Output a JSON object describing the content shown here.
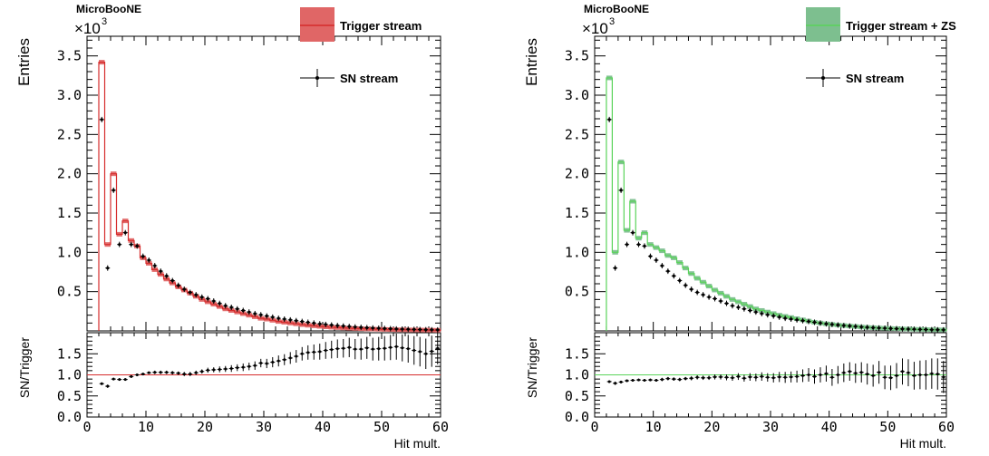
{
  "chart_data": [
    {
      "type": "histogram",
      "experiment_label": "MicroBooNE",
      "multiplier_label": "×10",
      "multiplier_exp": "3",
      "ylabel": "Entries",
      "xlabel": "Hit mult.",
      "ratio_ylabel": "SN/Trigger",
      "xlim": [
        0,
        60
      ],
      "ylim": [
        0,
        3.75
      ],
      "ratio_ylim": [
        0,
        2
      ],
      "x_ticks": [
        "0",
        "10",
        "20",
        "30",
        "40",
        "50",
        "60"
      ],
      "y_ticks": [
        "0.5",
        "1.0",
        "1.5",
        "2.0",
        "2.5",
        "3.0",
        "3.5"
      ],
      "ratio_ticks": [
        "0.0",
        "0.5",
        "1.0",
        "1.5"
      ],
      "legend": [
        {
          "label": "Trigger stream",
          "style": "band",
          "color": "#e06666"
        },
        {
          "label": "SN stream",
          "style": "marker",
          "color": "#000000"
        }
      ],
      "bins": {
        "start": 2,
        "width": 1,
        "count": 58
      },
      "series": [
        {
          "name": "Trigger stream",
          "color": "#d62c2c",
          "fill": "#e06666",
          "values": [
            3.42,
            1.1,
            2.0,
            1.23,
            1.4,
            1.15,
            1.08,
            0.93,
            0.86,
            0.78,
            0.72,
            0.66,
            0.61,
            0.56,
            0.52,
            0.48,
            0.44,
            0.4,
            0.37,
            0.34,
            0.31,
            0.28,
            0.26,
            0.24,
            0.22,
            0.2,
            0.18,
            0.16,
            0.15,
            0.135,
            0.12,
            0.11,
            0.1,
            0.09,
            0.08,
            0.072,
            0.065,
            0.058,
            0.052,
            0.047,
            0.042,
            0.038,
            0.034,
            0.031,
            0.028,
            0.025,
            0.023,
            0.021,
            0.019,
            0.017,
            0.015,
            0.014,
            0.013,
            0.012,
            0.011,
            0.01,
            0.009,
            0.008
          ]
        },
        {
          "name": "SN stream",
          "color": "#000000",
          "values": [
            2.69,
            0.8,
            1.79,
            1.1,
            1.25,
            1.1,
            1.08,
            0.95,
            0.9,
            0.83,
            0.76,
            0.7,
            0.64,
            0.58,
            0.53,
            0.49,
            0.46,
            0.43,
            0.41,
            0.38,
            0.35,
            0.32,
            0.3,
            0.28,
            0.26,
            0.24,
            0.22,
            0.205,
            0.19,
            0.175,
            0.16,
            0.15,
            0.14,
            0.13,
            0.12,
            0.11,
            0.1,
            0.09,
            0.082,
            0.075,
            0.068,
            0.062,
            0.056,
            0.05,
            0.045,
            0.041,
            0.037,
            0.034,
            0.031,
            0.028,
            0.025,
            0.023,
            0.021,
            0.019,
            0.017,
            0.015,
            0.014,
            0.013
          ]
        }
      ],
      "ratio": {
        "reference": 1.0,
        "values": [
          0.79,
          0.73,
          0.9,
          0.89,
          0.89,
          0.96,
          1.0,
          1.02,
          1.05,
          1.06,
          1.06,
          1.06,
          1.05,
          1.04,
          1.02,
          1.02,
          1.05,
          1.08,
          1.11,
          1.12,
          1.13,
          1.14,
          1.15,
          1.17,
          1.18,
          1.2,
          1.22,
          1.28,
          1.27,
          1.3,
          1.33,
          1.36,
          1.4,
          1.44,
          1.5,
          1.53,
          1.54,
          1.55,
          1.58,
          1.6,
          1.62,
          1.63,
          1.65,
          1.61,
          1.61,
          1.64,
          1.61,
          1.62,
          1.63,
          1.65,
          1.67,
          1.64,
          1.62,
          1.58,
          1.55,
          1.5,
          1.56,
          1.63
        ],
        "errors": [
          0.03,
          0.04,
          0.03,
          0.03,
          0.03,
          0.03,
          0.03,
          0.03,
          0.03,
          0.04,
          0.04,
          0.04,
          0.04,
          0.04,
          0.05,
          0.05,
          0.05,
          0.05,
          0.06,
          0.06,
          0.07,
          0.07,
          0.08,
          0.08,
          0.09,
          0.09,
          0.1,
          0.1,
          0.11,
          0.12,
          0.13,
          0.13,
          0.14,
          0.15,
          0.16,
          0.17,
          0.18,
          0.19,
          0.2,
          0.21,
          0.22,
          0.22,
          0.23,
          0.24,
          0.25,
          0.26,
          0.27,
          0.28,
          0.29,
          0.3,
          0.31,
          0.32,
          0.33,
          0.34,
          0.35,
          0.36,
          0.37,
          0.38
        ]
      }
    },
    {
      "type": "histogram",
      "experiment_label": "MicroBooNE",
      "multiplier_label": "×10",
      "multiplier_exp": "3",
      "ylabel": "Entries",
      "xlabel": "Hit mult.",
      "ratio_ylabel": "SN/Trigger",
      "xlim": [
        0,
        60
      ],
      "ylim": [
        0,
        3.75
      ],
      "ratio_ylim": [
        0,
        2
      ],
      "x_ticks": [
        "0",
        "10",
        "20",
        "30",
        "40",
        "50",
        "60"
      ],
      "y_ticks": [
        "0.5",
        "1.0",
        "1.5",
        "2.0",
        "2.5",
        "3.0",
        "3.5"
      ],
      "ratio_ticks": [
        "0.0",
        "0.5",
        "1.0",
        "1.5"
      ],
      "legend": [
        {
          "label": "Trigger stream + ZS",
          "style": "band",
          "color": "#7dbf8f"
        },
        {
          "label": "SN stream",
          "style": "marker",
          "color": "#000000"
        }
      ],
      "bins": {
        "start": 2,
        "width": 1,
        "count": 58
      },
      "series": [
        {
          "name": "Trigger stream + ZS",
          "color": "#5ad45a",
          "fill": "#7dbf8f",
          "values": [
            3.22,
            1.0,
            2.15,
            1.28,
            1.65,
            1.18,
            1.25,
            1.1,
            1.06,
            1.02,
            0.96,
            0.93,
            0.87,
            0.8,
            0.73,
            0.67,
            0.62,
            0.57,
            0.52,
            0.48,
            0.44,
            0.4,
            0.37,
            0.34,
            0.31,
            0.28,
            0.26,
            0.24,
            0.22,
            0.2,
            0.185,
            0.17,
            0.155,
            0.14,
            0.125,
            0.11,
            0.1,
            0.09,
            0.082,
            0.075,
            0.068,
            0.062,
            0.056,
            0.05,
            0.045,
            0.041,
            0.037,
            0.034,
            0.031,
            0.028,
            0.025,
            0.023,
            0.021,
            0.019,
            0.017,
            0.015,
            0.014,
            0.013
          ]
        },
        {
          "name": "SN stream",
          "color": "#000000",
          "values": [
            2.69,
            0.8,
            1.79,
            1.1,
            1.25,
            1.1,
            1.08,
            0.95,
            0.9,
            0.83,
            0.76,
            0.7,
            0.64,
            0.58,
            0.53,
            0.49,
            0.46,
            0.43,
            0.41,
            0.38,
            0.35,
            0.32,
            0.3,
            0.28,
            0.26,
            0.24,
            0.22,
            0.205,
            0.19,
            0.175,
            0.16,
            0.15,
            0.14,
            0.13,
            0.12,
            0.11,
            0.1,
            0.09,
            0.082,
            0.075,
            0.068,
            0.062,
            0.056,
            0.05,
            0.045,
            0.041,
            0.037,
            0.034,
            0.031,
            0.028,
            0.025,
            0.023,
            0.021,
            0.019,
            0.017,
            0.015,
            0.014,
            0.013
          ]
        }
      ],
      "ratio": {
        "reference": 1.0,
        "values": [
          0.84,
          0.8,
          0.83,
          0.86,
          0.87,
          0.88,
          0.87,
          0.88,
          0.87,
          0.89,
          0.91,
          0.9,
          0.89,
          0.91,
          0.92,
          0.94,
          0.93,
          0.93,
          0.95,
          0.95,
          0.94,
          0.93,
          0.96,
          0.92,
          0.95,
          0.94,
          0.96,
          0.94,
          0.93,
          0.95,
          0.94,
          0.95,
          0.96,
          0.98,
          1.0,
          0.96,
          1.0,
          1.03,
          0.94,
          1.0,
          1.05,
          1.08,
          1.04,
          1.06,
          1.02,
          0.98,
          1.06,
          0.94,
          0.93,
          0.98,
          1.08,
          1.05,
          0.98,
          1.0,
          1.0,
          1.03,
          1.02,
          0.95
        ],
        "errors": [
          0.03,
          0.04,
          0.03,
          0.03,
          0.03,
          0.03,
          0.03,
          0.03,
          0.03,
          0.04,
          0.04,
          0.04,
          0.04,
          0.04,
          0.05,
          0.05,
          0.05,
          0.05,
          0.06,
          0.06,
          0.07,
          0.07,
          0.08,
          0.08,
          0.09,
          0.09,
          0.1,
          0.1,
          0.11,
          0.12,
          0.13,
          0.13,
          0.14,
          0.15,
          0.16,
          0.17,
          0.18,
          0.19,
          0.2,
          0.21,
          0.22,
          0.22,
          0.23,
          0.24,
          0.25,
          0.26,
          0.27,
          0.28,
          0.29,
          0.3,
          0.31,
          0.32,
          0.33,
          0.34,
          0.35,
          0.36,
          0.37,
          0.38
        ]
      }
    }
  ]
}
